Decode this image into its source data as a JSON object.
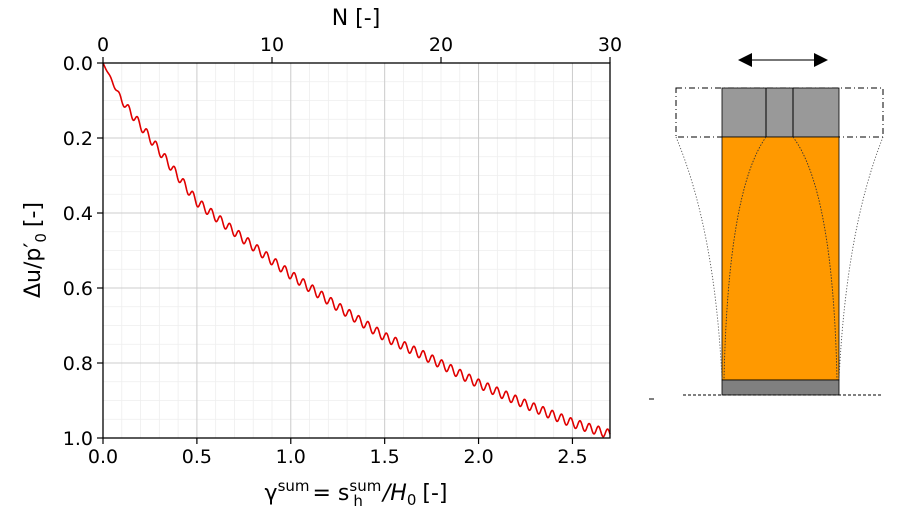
{
  "chart_data": {
    "type": "line",
    "xlabel": "γ",
    "xlabel_sup": "sum",
    "xlabel_rest": "= s",
    "xlabel_sup2": "sum",
    "xlabel_sub2": "h",
    "xlabel_tail": "/H",
    "xlabel_tail_sub": "0",
    "xlabel_unit": "[-]",
    "ylabel": "Δu/p",
    "ylabel_prime": "′",
    "ylabel_sub": "0",
    "ylabel_unit": "[-]",
    "top_xlabel": "N [-]",
    "xlim": [
      0,
      2.7
    ],
    "ylim": [
      0,
      1.0
    ],
    "y_inverted": true,
    "top_xlim": [
      0,
      30
    ],
    "x_ticks": [
      "0.0",
      "0.5",
      "1.0",
      "1.5",
      "2.0",
      "2.5"
    ],
    "x_tick_values": [
      0,
      0.5,
      1.0,
      1.5,
      2.0,
      2.5
    ],
    "y_ticks": [
      "0.0",
      "0.2",
      "0.4",
      "0.6",
      "0.8",
      "1.0"
    ],
    "y_tick_values": [
      0,
      0.2,
      0.4,
      0.6,
      0.8,
      1.0
    ],
    "top_ticks": [
      "0",
      "10",
      "20",
      "30"
    ],
    "top_tick_values": [
      0,
      10,
      20,
      30
    ],
    "grid": true,
    "series": [
      {
        "color": "#e00000",
        "x": [
          0,
          0.1,
          0.25,
          0.5,
          0.75,
          1.0,
          1.25,
          1.5,
          1.75,
          2.0,
          2.25,
          2.5,
          2.7
        ],
        "y": [
          0,
          0.1,
          0.2,
          0.37,
          0.47,
          0.565,
          0.65,
          0.73,
          0.79,
          0.855,
          0.91,
          0.96,
          0.99
        ],
        "oscillation_cycles": 55,
        "oscillation_amplitude": 0.012
      }
    ]
  },
  "diagram": {
    "colors": {
      "soil": "#ff9900",
      "cap": "#999999",
      "base": "#808080",
      "outline": "#000000"
    },
    "arrow": "double-headed-horizontal-arrow"
  }
}
